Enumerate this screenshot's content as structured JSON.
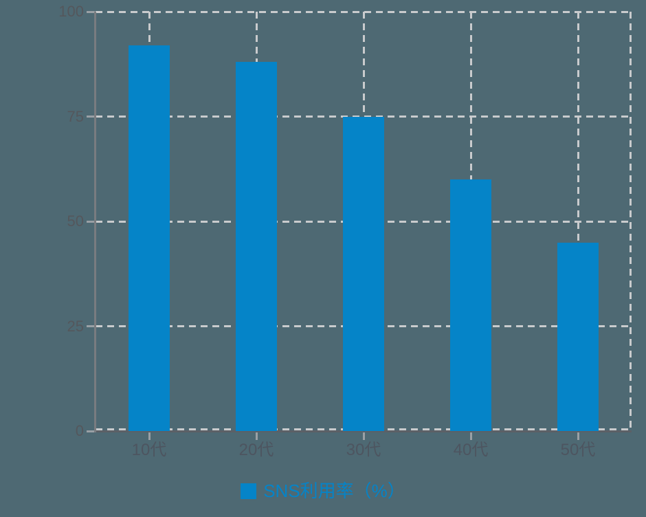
{
  "chart_data": {
    "type": "bar",
    "categories": [
      "10代",
      "20代",
      "30代",
      "40代",
      "50代"
    ],
    "values": [
      92,
      88,
      75,
      60,
      45
    ],
    "series_name": "SNS利用率（%）",
    "title": "",
    "xlabel": "",
    "ylabel": "",
    "ylim": [
      0,
      100
    ],
    "yticks": [
      0,
      25,
      50,
      75,
      100
    ],
    "grid": true,
    "gridline_style": "dashed",
    "legend_position": "bottom"
  },
  "legend": {
    "label": "SNS利用率（%）"
  },
  "colors": {
    "background": "#4e6973",
    "bar": "#0584c8",
    "gridline": "#c9cbcd",
    "axis_line": "#797c80",
    "baseline": "#5c6066",
    "tick": "#9aa0a5",
    "y_tick_label": "#54575c",
    "x_tick_label": "#4d5560",
    "legend_text": "#0584c8"
  }
}
